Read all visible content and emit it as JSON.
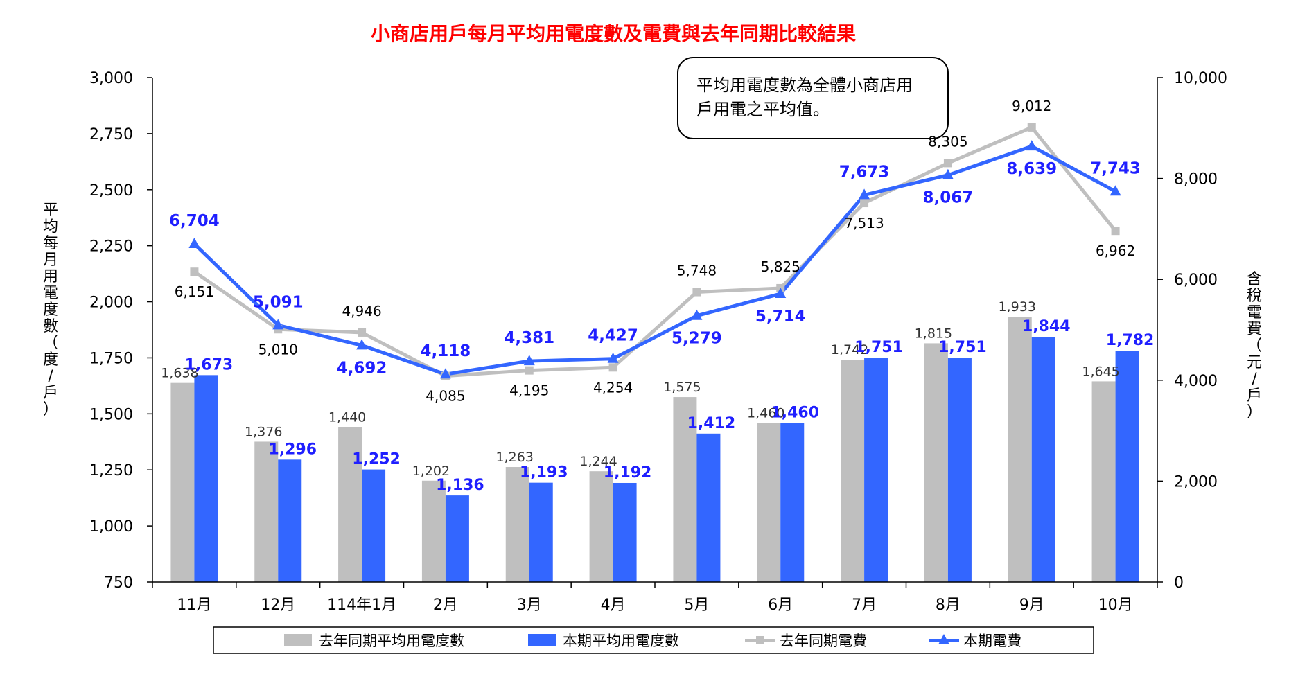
{
  "chart_data": {
    "type": "bar",
    "title": "小商店用戶每月平均用電度數及電費與去年同期比較結果",
    "categories": [
      "11月",
      "12月",
      "114年1月",
      "2月",
      "3月",
      "4月",
      "5月",
      "6月",
      "7月",
      "8月",
      "9月",
      "10月"
    ],
    "left_axis": {
      "label": "平均每月用電度數（度/戶）",
      "ylim": [
        750,
        3000
      ],
      "ticks": [
        "750",
        "1,000",
        "1,250",
        "1,500",
        "1,750",
        "2,000",
        "2,250",
        "2,500",
        "2,750",
        "3,000"
      ],
      "tick_values": [
        750,
        1000,
        1250,
        1500,
        1750,
        2000,
        2250,
        2500,
        2750,
        3000
      ]
    },
    "right_axis": {
      "label": "含稅電費（元/戶）",
      "ylim": [
        0,
        10000
      ],
      "ticks": [
        "0",
        "2,000",
        "4,000",
        "6,000",
        "8,000",
        "10,000"
      ],
      "tick_values": [
        0,
        2000,
        4000,
        6000,
        8000,
        10000
      ]
    },
    "bar_series": [
      {
        "name": "去年同期平均用電度數",
        "color": "#bfbfbf",
        "values": [
          1638,
          1376,
          1440,
          1202,
          1263,
          1244,
          1575,
          1460,
          1742,
          1815,
          1933,
          1645
        ],
        "labels": [
          "1,638",
          "1,376",
          "1,440",
          "1,202",
          "1,263",
          "1,244",
          "1,575",
          "1,460",
          "1,742",
          "1,815",
          "1,933",
          "1,645"
        ]
      },
      {
        "name": "本期平均用電度數",
        "color": "#3366ff",
        "values": [
          1673,
          1296,
          1252,
          1136,
          1193,
          1192,
          1412,
          1460,
          1751,
          1751,
          1844,
          1782
        ],
        "labels": [
          "1,673",
          "1,296",
          "1,252",
          "1,136",
          "1,193",
          "1,192",
          "1,412",
          "1,460",
          "1,751",
          "1,751",
          "1,844",
          "1,782"
        ]
      }
    ],
    "line_series": [
      {
        "name": "去年同期電費",
        "color": "#bfbfbf",
        "marker": "square",
        "values": [
          6151,
          5010,
          4946,
          4085,
          4195,
          4254,
          5748,
          5825,
          7513,
          8305,
          9012,
          6962
        ],
        "labels": [
          "6,151",
          "5,010",
          "4,946",
          "4,085",
          "4,195",
          "4,254",
          "5,748",
          "5,825",
          "7,513",
          "8,305",
          "9,012",
          "6,962"
        ]
      },
      {
        "name": "本期電費",
        "color": "#3366ff",
        "marker": "triangle",
        "values": [
          6704,
          5091,
          4692,
          4118,
          4381,
          4427,
          5279,
          5714,
          7673,
          8067,
          8639,
          7743
        ],
        "labels": [
          "6,704",
          "5,091",
          "4,692",
          "4,118",
          "4,381",
          "4,427",
          "5,279",
          "5,714",
          "7,673",
          "8,067",
          "8,639",
          "7,743"
        ]
      }
    ],
    "annotation": [
      "平均用電度數為全體小商店用",
      "戶用電之平均值。"
    ],
    "legend_position": "bottom",
    "grid": false
  }
}
